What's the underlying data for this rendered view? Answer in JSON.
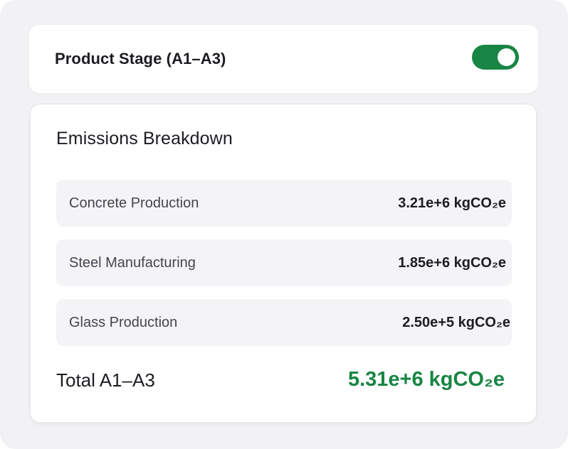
{
  "stage": {
    "title": "Product Stage (A1–A3)",
    "toggle_on": true
  },
  "breakdown": {
    "title": "Emissions Breakdown",
    "rows": [
      {
        "label": "Concrete Production",
        "value": "3.21e+6 kgCO₂e"
      },
      {
        "label": "Steel Manufacturing",
        "value": "1.85e+6 kgCO₂e"
      },
      {
        "label": "Glass Production",
        "value": "2.50e+5 kgCO₂e"
      }
    ],
    "total_label": "Total A1–A3",
    "total_value": "5.31e+6 kgCO₂e"
  },
  "colors": {
    "accent_green": "#188544",
    "background": "#f2f2f4",
    "card": "#ffffff",
    "row_background": "#f4f4f7"
  }
}
